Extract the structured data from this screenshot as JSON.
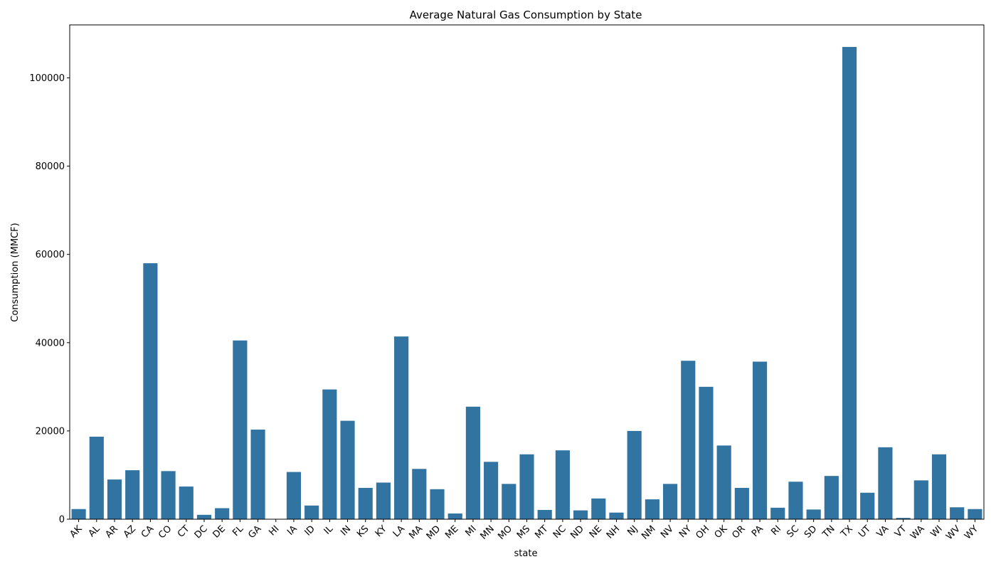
{
  "chart_data": {
    "type": "bar",
    "title": "Average Natural Gas Consumption by State",
    "xlabel": "state",
    "ylabel": "Consumption (MMCF)",
    "ylim": [
      0,
      112000
    ],
    "yticks": [
      0,
      20000,
      40000,
      60000,
      80000,
      100000
    ],
    "grid": false,
    "legend": "none",
    "bar_color": "#3274a1",
    "categories": [
      "AK",
      "AL",
      "AR",
      "AZ",
      "CA",
      "CO",
      "CT",
      "DC",
      "DE",
      "FL",
      "GA",
      "HI",
      "IA",
      "ID",
      "IL",
      "IN",
      "KS",
      "KY",
      "LA",
      "MA",
      "MD",
      "ME",
      "MI",
      "MN",
      "MO",
      "MS",
      "MT",
      "NC",
      "ND",
      "NE",
      "NH",
      "NJ",
      "NM",
      "NV",
      "NY",
      "OH",
      "OK",
      "OR",
      "PA",
      "RI",
      "SC",
      "SD",
      "TN",
      "TX",
      "UT",
      "VA",
      "VT",
      "WA",
      "WI",
      "WV",
      "WY"
    ],
    "values": [
      2300,
      18700,
      9000,
      11100,
      58000,
      10900,
      7400,
      1000,
      2500,
      40500,
      20300,
      0,
      10700,
      3100,
      29400,
      22300,
      7100,
      8300,
      41400,
      11400,
      6800,
      1300,
      25500,
      13000,
      8000,
      14700,
      2100,
      15600,
      2000,
      4700,
      1500,
      20000,
      4500,
      8000,
      35900,
      30000,
      16700,
      7100,
      35700,
      2600,
      8500,
      2200,
      9800,
      107000,
      6000,
      16300,
      300,
      8800,
      14700,
      2700,
      2300
    ]
  }
}
